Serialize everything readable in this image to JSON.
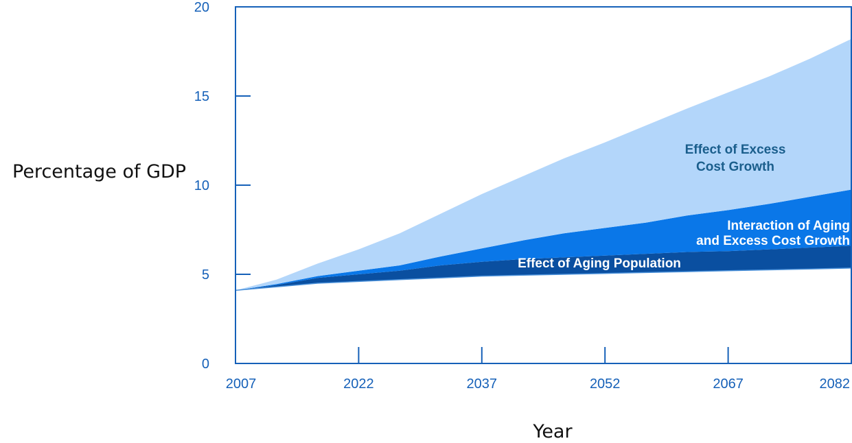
{
  "chart_data": {
    "type": "area",
    "stacked": true,
    "xlabel": "Year",
    "ylabel": "Percentage of GDP",
    "xlim": [
      2007,
      2082
    ],
    "ylim": [
      0,
      20
    ],
    "x_ticks": [
      2007,
      2022,
      2037,
      2052,
      2067,
      2082
    ],
    "y_ticks": [
      0,
      5,
      10,
      15,
      20
    ],
    "grid": false,
    "x": [
      2007,
      2012,
      2017,
      2022,
      2027,
      2032,
      2037,
      2042,
      2047,
      2052,
      2057,
      2062,
      2067,
      2072,
      2077,
      2082
    ],
    "baseline": {
      "values": [
        4.1,
        4.3,
        4.5,
        4.6,
        4.7,
        4.8,
        4.9,
        4.95,
        5.0,
        5.05,
        5.1,
        5.15,
        5.2,
        5.25,
        5.3,
        5.35
      ]
    },
    "series": [
      {
        "label": "Effect of Aging Population",
        "color": "#0a4fa0",
        "values": [
          0.0,
          0.1,
          0.3,
          0.4,
          0.5,
          0.7,
          0.8,
          0.9,
          0.95,
          1.0,
          1.05,
          1.1,
          1.1,
          1.15,
          1.2,
          1.25
        ]
      },
      {
        "label": [
          "Interaction of Aging",
          "and Excess Cost Growth"
        ],
        "color": "#0a77e8",
        "values": [
          0.0,
          0.05,
          0.1,
          0.2,
          0.3,
          0.5,
          0.75,
          1.05,
          1.35,
          1.55,
          1.75,
          2.05,
          2.3,
          2.55,
          2.85,
          3.15
        ]
      },
      {
        "label": [
          "Effect of Excess",
          "Cost Growth"
        ],
        "color": "#b3d6fa",
        "values": [
          0.0,
          0.25,
          0.7,
          1.2,
          1.8,
          2.4,
          3.05,
          3.6,
          4.2,
          4.8,
          5.45,
          6.0,
          6.6,
          7.15,
          7.75,
          8.45
        ]
      }
    ]
  },
  "style": {
    "axis_color": "#1560b8",
    "label_color_dark": "#1a5e8c",
    "label_color_light": "#ffffff"
  }
}
